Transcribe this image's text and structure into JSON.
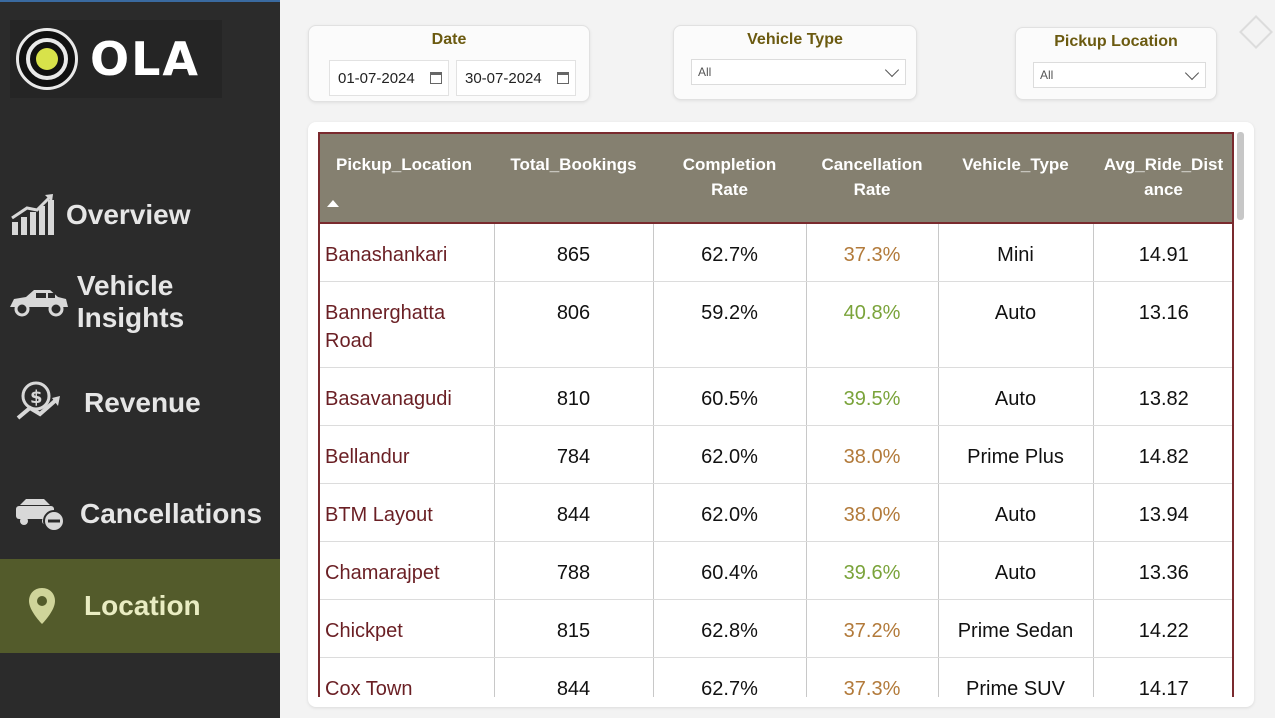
{
  "brand": {
    "name": "OLA"
  },
  "nav": {
    "items": [
      {
        "label": "Overview",
        "icon": "chart-growth-icon"
      },
      {
        "label": "Vehicle Insights",
        "icon": "car-icon"
      },
      {
        "label": "Revenue",
        "icon": "money-hand-icon"
      },
      {
        "label": "Cancellations",
        "icon": "car-cancel-icon"
      },
      {
        "label": "Location",
        "icon": "map-pin-icon",
        "active": true
      }
    ]
  },
  "filters": {
    "date": {
      "title": "Date",
      "start": "01-07-2024",
      "end": "30-07-2024"
    },
    "vehicle_type": {
      "title": "Vehicle Type",
      "value": "All"
    },
    "pickup_location": {
      "title": "Pickup Location",
      "value": "All"
    }
  },
  "table": {
    "headers": [
      "Pickup_Location",
      "Total_Bookings",
      "Completion Rate",
      "Cancellation Rate",
      "Vehicle_Type",
      "Avg_Ride_Distance"
    ],
    "header_display": [
      "Pickup_Location",
      "Total_Bookings",
      "Completion\nRate",
      "Cancellation\nRate",
      "Vehicle_Type",
      "Avg_Ride_Dist\nance"
    ],
    "rows": [
      [
        "Banashankari",
        "865",
        "62.7%",
        "37.3%",
        "Mini",
        "14.91"
      ],
      [
        "Bannerghatta Road",
        "806",
        "59.2%",
        "40.8%",
        "Auto",
        "13.16"
      ],
      [
        "Basavanagudi",
        "810",
        "60.5%",
        "39.5%",
        "Auto",
        "13.82"
      ],
      [
        "Bellandur",
        "784",
        "62.0%",
        "38.0%",
        "Prime Plus",
        "14.82"
      ],
      [
        "BTM Layout",
        "844",
        "62.0%",
        "38.0%",
        "Auto",
        "13.94"
      ],
      [
        "Chamarajpet",
        "788",
        "60.4%",
        "39.6%",
        "Auto",
        "13.36"
      ],
      [
        "Chickpet",
        "815",
        "62.8%",
        "37.2%",
        "Prime Sedan",
        "14.22"
      ],
      [
        "Cox Town",
        "844",
        "62.7%",
        "37.3%",
        "Prime SUV",
        "14.17"
      ]
    ],
    "cancel_colors": [
      "orange",
      "green",
      "green",
      "orange",
      "orange",
      "green",
      "orange",
      "orange"
    ]
  },
  "colors": {
    "sidebar_bg": "#2b2b2b",
    "active_nav_bg": "#535b2b",
    "header_bg": "#858070",
    "border_accent": "#7a2a2e",
    "location_text": "#6a1f24",
    "cancel_low": "#b27a3a",
    "cancel_high": "#7aa33a"
  }
}
